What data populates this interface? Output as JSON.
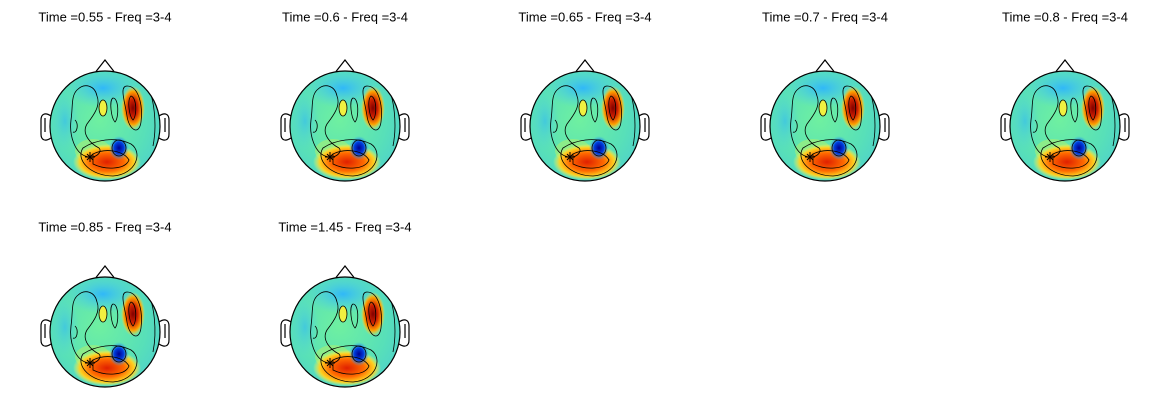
{
  "panels": [
    {
      "title": "Time =0.55 - Freq =3-4"
    },
    {
      "title": "Time =0.6 - Freq =3-4"
    },
    {
      "title": "Time =0.65 - Freq =3-4"
    },
    {
      "title": "Time =0.7 - Freq =3-4"
    },
    {
      "title": "Time =0.8 - Freq =3-4"
    },
    {
      "title": "Time =0.85 - Freq =3-4"
    },
    {
      "title": "Time =1.45 - Freq =3-4"
    }
  ]
}
